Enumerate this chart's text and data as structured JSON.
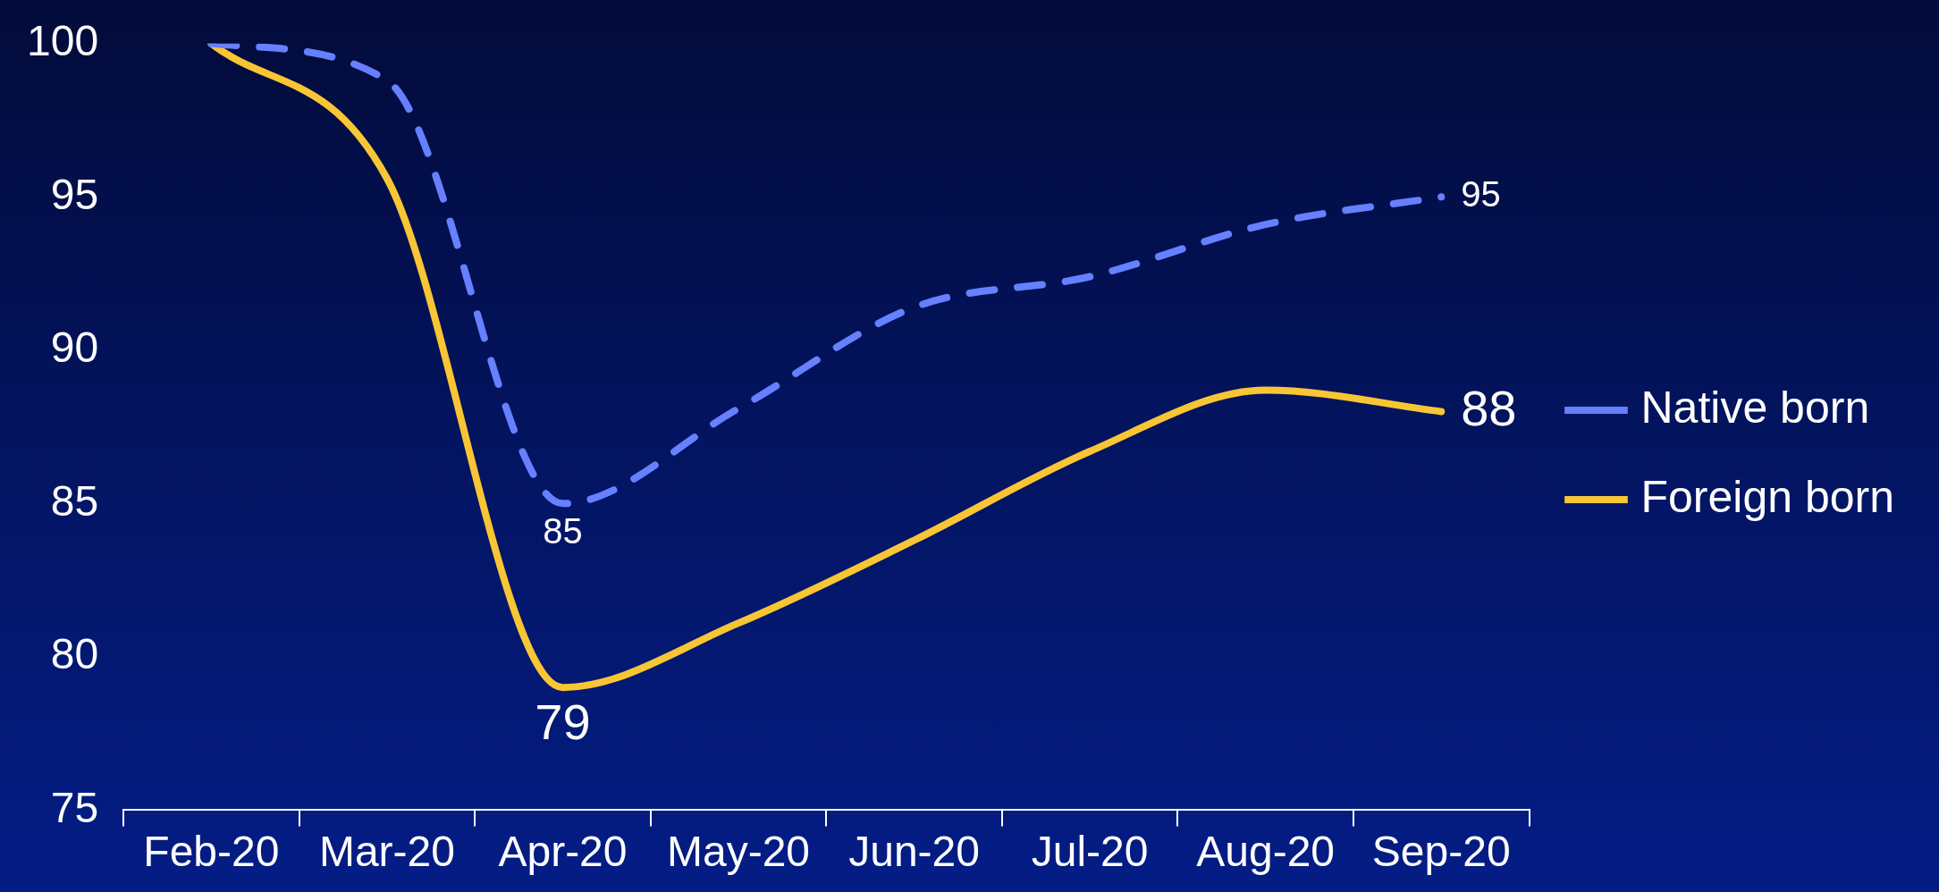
{
  "chart_data": {
    "type": "line",
    "categories": [
      "Feb-20",
      "Mar-20",
      "Apr-20",
      "May-20",
      "Jun-20",
      "Jul-20",
      "Aug-20",
      "Sep-20"
    ],
    "series": [
      {
        "name": "Native born",
        "color": "#6680ff",
        "line_style": "dashed",
        "values": [
          100,
          98.8,
          85,
          88.1,
          91.4,
          92.4,
          94.1,
          95
        ],
        "value_labels": [
          null,
          null,
          "85",
          null,
          null,
          null,
          null,
          "95"
        ]
      },
      {
        "name": "Foreign born",
        "color": "#f8c534",
        "line_style": "solid",
        "values": [
          100,
          95.6,
          79,
          81.1,
          83.8,
          86.7,
          88.7,
          88
        ],
        "value_labels": [
          null,
          null,
          "79",
          null,
          null,
          null,
          null,
          "88"
        ]
      }
    ],
    "ylim": [
      75,
      100
    ],
    "yticks": [
      75,
      80,
      85,
      90,
      95,
      100
    ],
    "grid": false,
    "legend": "right",
    "marker": "none"
  }
}
